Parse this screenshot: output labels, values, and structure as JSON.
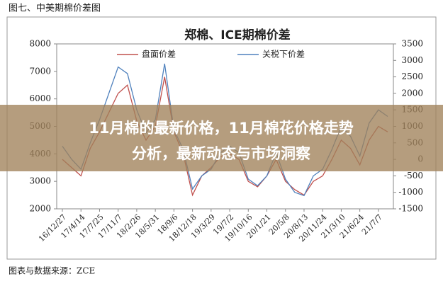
{
  "chart_data": {
    "type": "line",
    "figure_label": "图七、中美期棉价差图",
    "title": "郑棉、ICE期棉价差",
    "source": "图表与数据来源：ZCE",
    "banner_lines": [
      "11月棉的最新价格，11月棉花价格走势",
      "分析，最新动态与市场洞察"
    ],
    "categories": [
      "16/12/27",
      null,
      "17/4/14",
      null,
      "17/7/25",
      null,
      "17/11/7",
      null,
      "18/2/26",
      null,
      "18/5/31",
      null,
      "18/9/6",
      null,
      "18/12/18",
      null,
      "19/3/29",
      null,
      "19/7/2",
      null,
      "19/10/16",
      null,
      "20/1/21",
      null,
      "20/5/8",
      null,
      "20/8/13",
      null,
      "20/11/24",
      null,
      "21/3/10",
      null,
      "21/6/24",
      null,
      "21/7/7",
      null
    ],
    "series": [
      {
        "name": "盘面价差",
        "color": "#c0504d",
        "axis": "y",
        "values": [
          3800,
          3500,
          3200,
          4200,
          4800,
          5500,
          6200,
          6500,
          5200,
          4500,
          5000,
          6800,
          4800,
          4000,
          2500,
          3200,
          3500,
          3900,
          4000,
          3800,
          3000,
          2800,
          3200,
          3800,
          3000,
          2700,
          2500,
          3000,
          3200,
          3800,
          4500,
          4200,
          3600,
          4500,
          5000,
          4800
        ]
      },
      {
        "name": "关税下价差",
        "color": "#4f81bd",
        "axis": "y2",
        "values": [
          400,
          0,
          -300,
          500,
          1200,
          2000,
          2800,
          2600,
          1500,
          800,
          1200,
          2900,
          900,
          300,
          -900,
          -500,
          -300,
          200,
          400,
          200,
          -600,
          -800,
          -500,
          200,
          -600,
          -1000,
          -1100,
          -500,
          -300,
          300,
          1000,
          700,
          100,
          1100,
          1500,
          1300
        ]
      }
    ],
    "ylim": [
      2000,
      8000
    ],
    "yticks": [
      2000,
      3000,
      4000,
      5000,
      6000,
      7000,
      8000
    ],
    "y2lim": [
      -1500,
      3500
    ],
    "y2ticks": [
      -1500,
      -1000,
      -500,
      0,
      500,
      1000,
      1500,
      2000,
      2500,
      3000,
      3500
    ]
  }
}
